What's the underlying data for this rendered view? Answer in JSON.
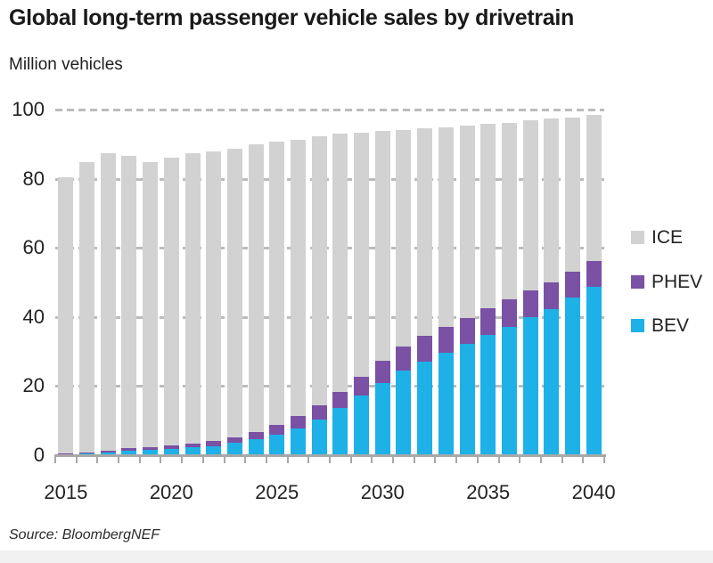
{
  "title": "Global long-term passenger vehicle sales by drivetrain",
  "subtitle": "Million vehicles",
  "source": "Source: BloombergNEF",
  "colors": {
    "ice": "#d2d2d2",
    "phev": "#7a51a5",
    "bev": "#1eb1e7",
    "grid": "#bcbcbc",
    "axis": "#a8a8a8",
    "text": "#1e1e1e",
    "bottom_strip": "#f0f0f0"
  },
  "legend": [
    {
      "label": "ICE",
      "color": "#d2d2d2"
    },
    {
      "label": "PHEV",
      "color": "#7a51a5"
    },
    {
      "label": "BEV",
      "color": "#1eb1e7"
    }
  ],
  "chart_data": {
    "type": "bar",
    "stacked": true,
    "title": "Global long-term passenger vehicle sales by drivetrain",
    "xlabel": "",
    "ylabel": "Million vehicles",
    "ylim": [
      0,
      100
    ],
    "y_ticks": [
      0,
      20,
      40,
      60,
      80,
      100
    ],
    "x_tick_labels": [
      "2015",
      "2020",
      "2025",
      "2030",
      "2035",
      "2040"
    ],
    "grid": "dashed horizontal",
    "legend_position": "right",
    "categories": [
      2015,
      2016,
      2017,
      2018,
      2019,
      2020,
      2021,
      2022,
      2023,
      2024,
      2025,
      2026,
      2027,
      2028,
      2029,
      2030,
      2031,
      2032,
      2033,
      2034,
      2035,
      2036,
      2037,
      2038,
      2039,
      2040
    ],
    "series": [
      {
        "name": "BEV",
        "color": "#1eb1e7",
        "values": [
          0.2,
          0.5,
          0.8,
          1.4,
          1.5,
          1.8,
          2.2,
          2.7,
          3.5,
          4.6,
          6.0,
          7.8,
          10.3,
          13.7,
          17.2,
          20.9,
          24.4,
          27.1,
          29.6,
          32.1,
          34.7,
          37.2,
          39.9,
          42.4,
          45.7,
          48.8
        ]
      },
      {
        "name": "PHEV",
        "color": "#7a51a5",
        "values": [
          0.2,
          0.3,
          0.4,
          0.6,
          0.7,
          1.0,
          1.2,
          1.4,
          1.7,
          2.1,
          2.7,
          3.5,
          4.2,
          4.6,
          5.4,
          6.5,
          7.0,
          7.4,
          7.6,
          7.7,
          7.8,
          7.8,
          7.7,
          7.6,
          7.4,
          7.3
        ]
      },
      {
        "name": "ICE",
        "color": "#d2d2d2",
        "values": [
          79.9,
          84.1,
          86.1,
          84.6,
          82.6,
          83.3,
          84.0,
          83.9,
          83.5,
          83.2,
          81.9,
          79.9,
          77.8,
          74.7,
          70.7,
          66.4,
          62.6,
          60.1,
          57.6,
          55.6,
          53.5,
          51.1,
          49.3,
          47.3,
          44.7,
          42.3
        ]
      }
    ]
  }
}
